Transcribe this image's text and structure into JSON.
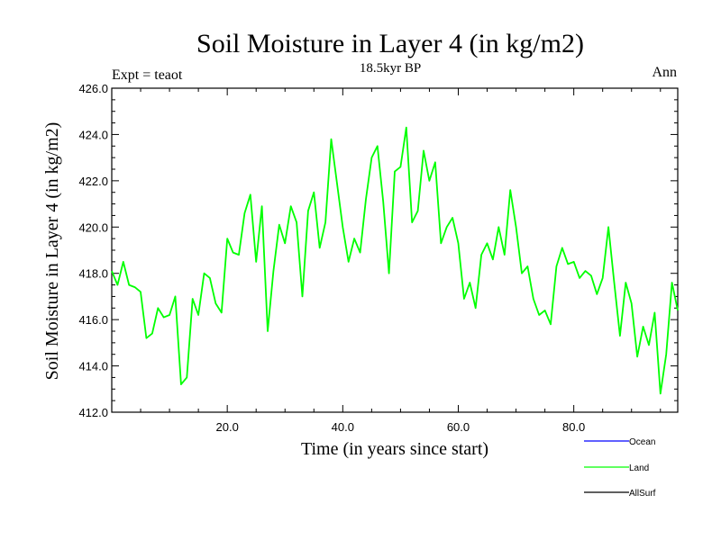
{
  "chart_data": {
    "type": "line",
    "title": "Soil Moisture in Layer 4 (in kg/m2)",
    "subtitle": "18.5kyr BP",
    "left_label": "Expt = teaot",
    "right_label": "Ann",
    "xlabel": "Time (in years since start)",
    "ylabel": "Soil Moisture in Layer 4 (in kg/m2)",
    "xlim": [
      0,
      98
    ],
    "ylim": [
      412.0,
      426.0
    ],
    "x_ticks": [
      20,
      40,
      60,
      80
    ],
    "x_tick_labels": [
      "20.0",
      "40.0",
      "60.0",
      "80.0"
    ],
    "y_ticks": [
      412,
      414,
      416,
      418,
      420,
      422,
      424,
      426
    ],
    "y_tick_labels": [
      "412.0",
      "414.0",
      "416.0",
      "418.0",
      "420.0",
      "422.0",
      "424.0",
      "426.0"
    ],
    "legend_position": "bottom-right",
    "series": [
      {
        "name": "Ocean",
        "color": "#0000ff",
        "values": []
      },
      {
        "name": "Land",
        "color": "#00ff00",
        "x": [
          0,
          1,
          2,
          3,
          4,
          5,
          6,
          7,
          8,
          9,
          10,
          11,
          12,
          13,
          14,
          15,
          16,
          17,
          18,
          19,
          20,
          21,
          22,
          23,
          24,
          25,
          26,
          27,
          28,
          29,
          30,
          31,
          32,
          33,
          34,
          35,
          36,
          37,
          38,
          39,
          40,
          41,
          42,
          43,
          44,
          45,
          46,
          47,
          48,
          49,
          50,
          51,
          52,
          53,
          54,
          55,
          56,
          57,
          58,
          59,
          60,
          61,
          62,
          63,
          64,
          65,
          66,
          67,
          68,
          69,
          70,
          71,
          72,
          73,
          74,
          75,
          76,
          77,
          78,
          79,
          80,
          81,
          82,
          83,
          84,
          85,
          86,
          87,
          88,
          89,
          90,
          91,
          92,
          93,
          94,
          95,
          96,
          97,
          98
        ],
        "values": [
          418.1,
          417.5,
          418.5,
          417.5,
          417.4,
          417.2,
          415.2,
          415.4,
          416.5,
          416.1,
          416.2,
          417.0,
          413.2,
          413.5,
          416.9,
          416.2,
          418.0,
          417.8,
          416.7,
          416.3,
          419.5,
          418.9,
          418.8,
          420.6,
          421.4,
          418.5,
          420.9,
          415.5,
          418.1,
          420.1,
          419.3,
          420.9,
          420.2,
          417.0,
          420.7,
          421.5,
          419.1,
          420.2,
          423.8,
          421.9,
          420.0,
          418.5,
          419.5,
          418.9,
          421.2,
          423.0,
          423.5,
          421.1,
          418.0,
          422.4,
          422.6,
          424.3,
          420.2,
          420.7,
          423.3,
          422.0,
          422.8,
          419.3,
          420.0,
          420.4,
          419.3,
          416.9,
          417.6,
          416.5,
          418.8,
          419.3,
          418.6,
          420.0,
          418.8,
          421.6,
          420.0,
          418.0,
          418.3,
          416.9,
          416.2,
          416.4,
          415.8,
          418.3,
          419.1,
          418.4,
          418.5,
          417.8,
          418.1,
          417.9,
          417.1,
          417.8,
          420.0,
          417.6,
          415.3,
          417.6,
          416.7,
          414.4,
          415.7,
          414.9,
          416.3,
          412.8,
          414.5,
          417.6,
          416.4
        ]
      },
      {
        "name": "AllSurf",
        "color": "#000000",
        "values": []
      }
    ]
  }
}
